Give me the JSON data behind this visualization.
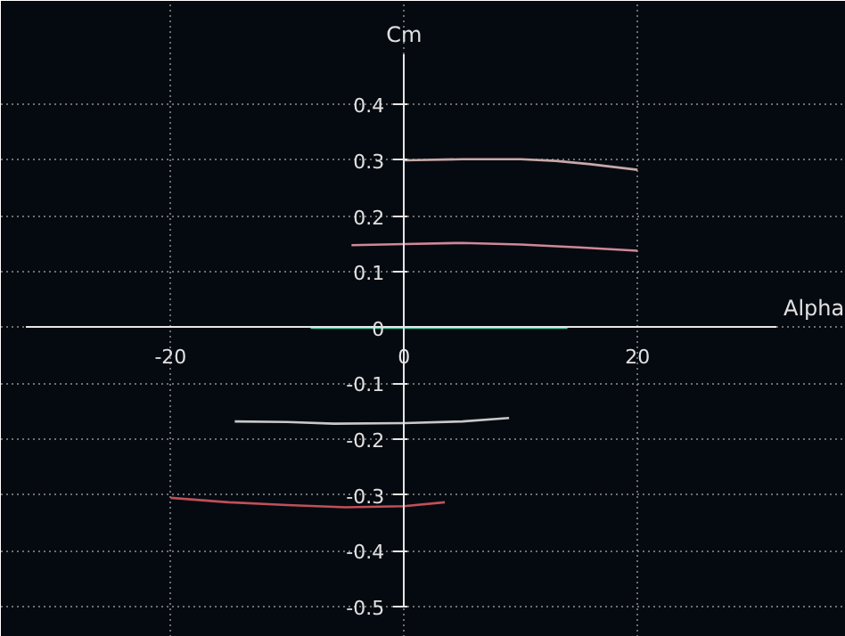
{
  "chart_data": {
    "type": "line",
    "xlabel": "Alpha",
    "ylabel": "Cm",
    "xlim": [
      -32.4,
      31.9
    ],
    "ylim": [
      -0.5,
      0.49
    ],
    "xticks": [
      -20,
      0,
      20
    ],
    "yticks": [
      -0.5,
      -0.4,
      -0.3,
      -0.2,
      -0.1,
      0,
      0.1,
      0.2,
      0.3,
      0.4
    ],
    "grid": true,
    "line_style": "solid",
    "marker": "none",
    "series": [
      {
        "color": "#c8a8a8",
        "x": [
          0,
          5,
          10,
          13,
          16,
          20
        ],
        "values": [
          0.3,
          0.302,
          0.302,
          0.299,
          0.293,
          0.283
        ]
      },
      {
        "color": "#d08898",
        "x": [
          -4.5,
          0,
          5,
          10,
          15,
          20
        ],
        "values": [
          0.148,
          0.15,
          0.152,
          0.149,
          0.144,
          0.138
        ]
      },
      {
        "color": "#50c8a0",
        "x": [
          -8,
          0,
          14
        ],
        "values": [
          0,
          0,
          0
        ]
      },
      {
        "color": "#c8c8c8",
        "x": [
          -14.5,
          -10,
          -6,
          0,
          5,
          9
        ],
        "values": [
          -0.168,
          -0.169,
          -0.172,
          -0.171,
          -0.168,
          -0.162
        ]
      },
      {
        "color": "#c05058",
        "x": [
          -20,
          -15,
          -10,
          -5,
          0,
          3.5
        ],
        "values": [
          -0.305,
          -0.313,
          -0.318,
          -0.322,
          -0.32,
          -0.313
        ]
      }
    ]
  }
}
